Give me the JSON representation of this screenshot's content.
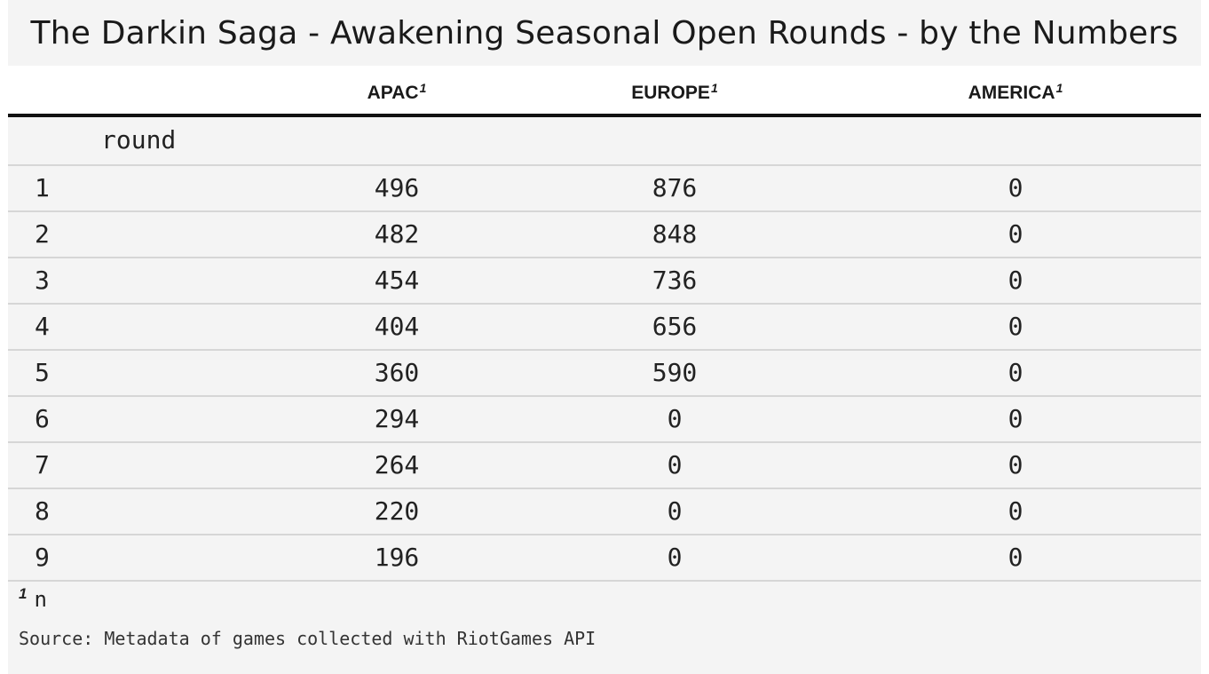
{
  "chart_data": {
    "type": "table",
    "title": "The Darkin Saga - Awakening Seasonal Open Rounds - by the Numbers",
    "columns": [
      {
        "key": "apac",
        "label": "APAC",
        "footnote_mark": "1"
      },
      {
        "key": "europe",
        "label": "EUROPE",
        "footnote_mark": "1"
      },
      {
        "key": "america",
        "label": "AMERICA",
        "footnote_mark": "1"
      }
    ],
    "row_group_label": "round",
    "rows": [
      {
        "round": "1",
        "apac": "496",
        "europe": "876",
        "america": "0"
      },
      {
        "round": "2",
        "apac": "482",
        "europe": "848",
        "america": "0"
      },
      {
        "round": "3",
        "apac": "454",
        "europe": "736",
        "america": "0"
      },
      {
        "round": "4",
        "apac": "404",
        "europe": "656",
        "america": "0"
      },
      {
        "round": "5",
        "apac": "360",
        "europe": "590",
        "america": "0"
      },
      {
        "round": "6",
        "apac": "294",
        "europe": "0",
        "america": "0"
      },
      {
        "round": "7",
        "apac": "264",
        "europe": "0",
        "america": "0"
      },
      {
        "round": "8",
        "apac": "220",
        "europe": "0",
        "america": "0"
      },
      {
        "round": "9",
        "apac": "196",
        "europe": "0",
        "america": "0"
      }
    ],
    "footnote": {
      "mark": "1",
      "text": "n"
    },
    "source": "Source: Metadata of games collected with RiotGames API"
  }
}
